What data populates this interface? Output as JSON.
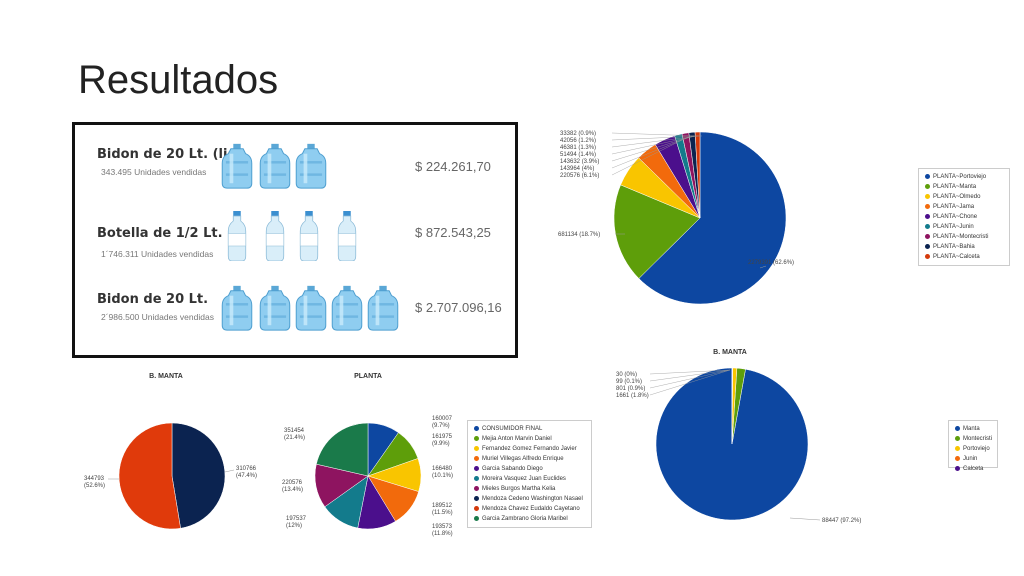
{
  "slide": {
    "title": "Resultados"
  },
  "products": [
    {
      "name": "Bidon de 20 Lt. (liq)",
      "units": "343.495 Unidades vendidas",
      "price": "$ 224.261,70",
      "icon": "water-jug-icon",
      "icon_count": 3
    },
    {
      "name": "Botella de 1/2 Lt.",
      "units": "1´746.311 Unidades vendidas",
      "price": "$ 872.543,25",
      "icon": "water-bottle-icon",
      "icon_count": 4
    },
    {
      "name": "Bidon de 20 Lt.",
      "units": "2´986.500 Unidades vendidas",
      "price": "$ 2.707.096,16",
      "icon": "water-jug-icon",
      "icon_count": 5
    }
  ],
  "chart_data": [
    {
      "id": "plants",
      "type": "pie",
      "title": "",
      "slices": [
        {
          "name": "PLANTA~Portoviejo",
          "value": 2279391,
          "label": "2279391 (62.6%)",
          "color": "#0d47a1"
        },
        {
          "name": "PLANTA~Manta",
          "value": 681134,
          "label": "681134 (18.7%)",
          "color": "#5e9e0a"
        },
        {
          "name": "PLANTA~Olmedo",
          "value": 220576,
          "label": "220576 (6.1%)",
          "color": "#f9c500"
        },
        {
          "name": "PLANTA~Jama",
          "value": 143964,
          "label": "143964 (4%)",
          "color": "#f26a0c"
        },
        {
          "name": "PLANTA~Chone",
          "value": 143632,
          "label": "143632 (3.9%)",
          "color": "#4b0f8c"
        },
        {
          "name": "PLANTA~Junin",
          "value": 51494,
          "label": "51494 (1.4%)",
          "color": "#137b8c"
        },
        {
          "name": "PLANTA~Montecristi",
          "value": 46381,
          "label": "46381 (1.3%)",
          "color": "#8e1460"
        },
        {
          "name": "PLANTA~Bahia",
          "value": 42056,
          "label": "42056 (1.2%)",
          "color": "#0b2350"
        },
        {
          "name": "PLANTA~Calceta",
          "value": 33382,
          "label": "33382 (0.9%)",
          "color": "#d43a0c"
        }
      ]
    },
    {
      "id": "b-manta-split",
      "type": "pie",
      "title": "B. MANTA",
      "slices": [
        {
          "name": "",
          "value": 310766,
          "label": "310766\n(47.4%)",
          "color": "#0b2350"
        },
        {
          "name": "",
          "value": 344793,
          "label": "344793\n(52.6%)",
          "color": "#e03a0b"
        }
      ]
    },
    {
      "id": "planta-clients",
      "type": "pie",
      "title": "PLANTA",
      "slices": [
        {
          "name": "CONSUMIDOR FINAL",
          "value": 160007,
          "label": "160007\n(9.7%)",
          "color": "#0d47a1"
        },
        {
          "name": "Mejia Anton Marvin Daniel",
          "value": 161975,
          "label": "161975\n(9.9%)",
          "color": "#5e9e0a"
        },
        {
          "name": "Fernandez Gomez Fernando Javier",
          "value": 166480,
          "label": "166480\n(10.1%)",
          "color": "#f9c500"
        },
        {
          "name": "Muriel Villegas Alfredo Enrique",
          "value": 189512,
          "label": "189512\n(11.5%)",
          "color": "#f26a0c"
        },
        {
          "name": "Garcia Sabando Diego",
          "value": 193573,
          "label": "193573\n(11.8%)",
          "color": "#4b0f8c"
        },
        {
          "name": "Moreira Vasquez Juan Euclides",
          "value": 197537,
          "label": "197537\n(12%)",
          "color": "#137b8c"
        },
        {
          "name": "Mieles Burgos Martha Kelia",
          "value": 220576,
          "label": "220576\n(13.4%)",
          "color": "#8e1460"
        },
        {
          "name": "Mendoza Cedeno Washington Nasael",
          "value": 0,
          "label": "",
          "color": "#0b2350"
        },
        {
          "name": "Mendoza Chavez Eudaldo Cayetano",
          "value": 0,
          "label": "",
          "color": "#d43a0c"
        },
        {
          "name": "Garcia Zambrano Gloria Maribel",
          "value": 351454,
          "label": "351454\n(21.4%)",
          "color": "#1a7a4a"
        }
      ]
    },
    {
      "id": "b-manta-cities",
      "type": "pie",
      "title": "B. MANTA",
      "slices": [
        {
          "name": "Manta",
          "value": 88447,
          "label": "88447 (97.2%)",
          "color": "#0d47a1"
        },
        {
          "name": "Montecristi",
          "value": 1661,
          "label": "1661 (1.8%)",
          "color": "#5e9e0a"
        },
        {
          "name": "Portoviejo",
          "value": 801,
          "label": "801 (0.9%)",
          "color": "#f9c500"
        },
        {
          "name": "Junin",
          "value": 99,
          "label": "99 (0.1%)",
          "color": "#f26a0c"
        },
        {
          "name": "Calceta",
          "value": 30,
          "label": "30 (0%)",
          "color": "#4b0f8c"
        }
      ]
    }
  ]
}
